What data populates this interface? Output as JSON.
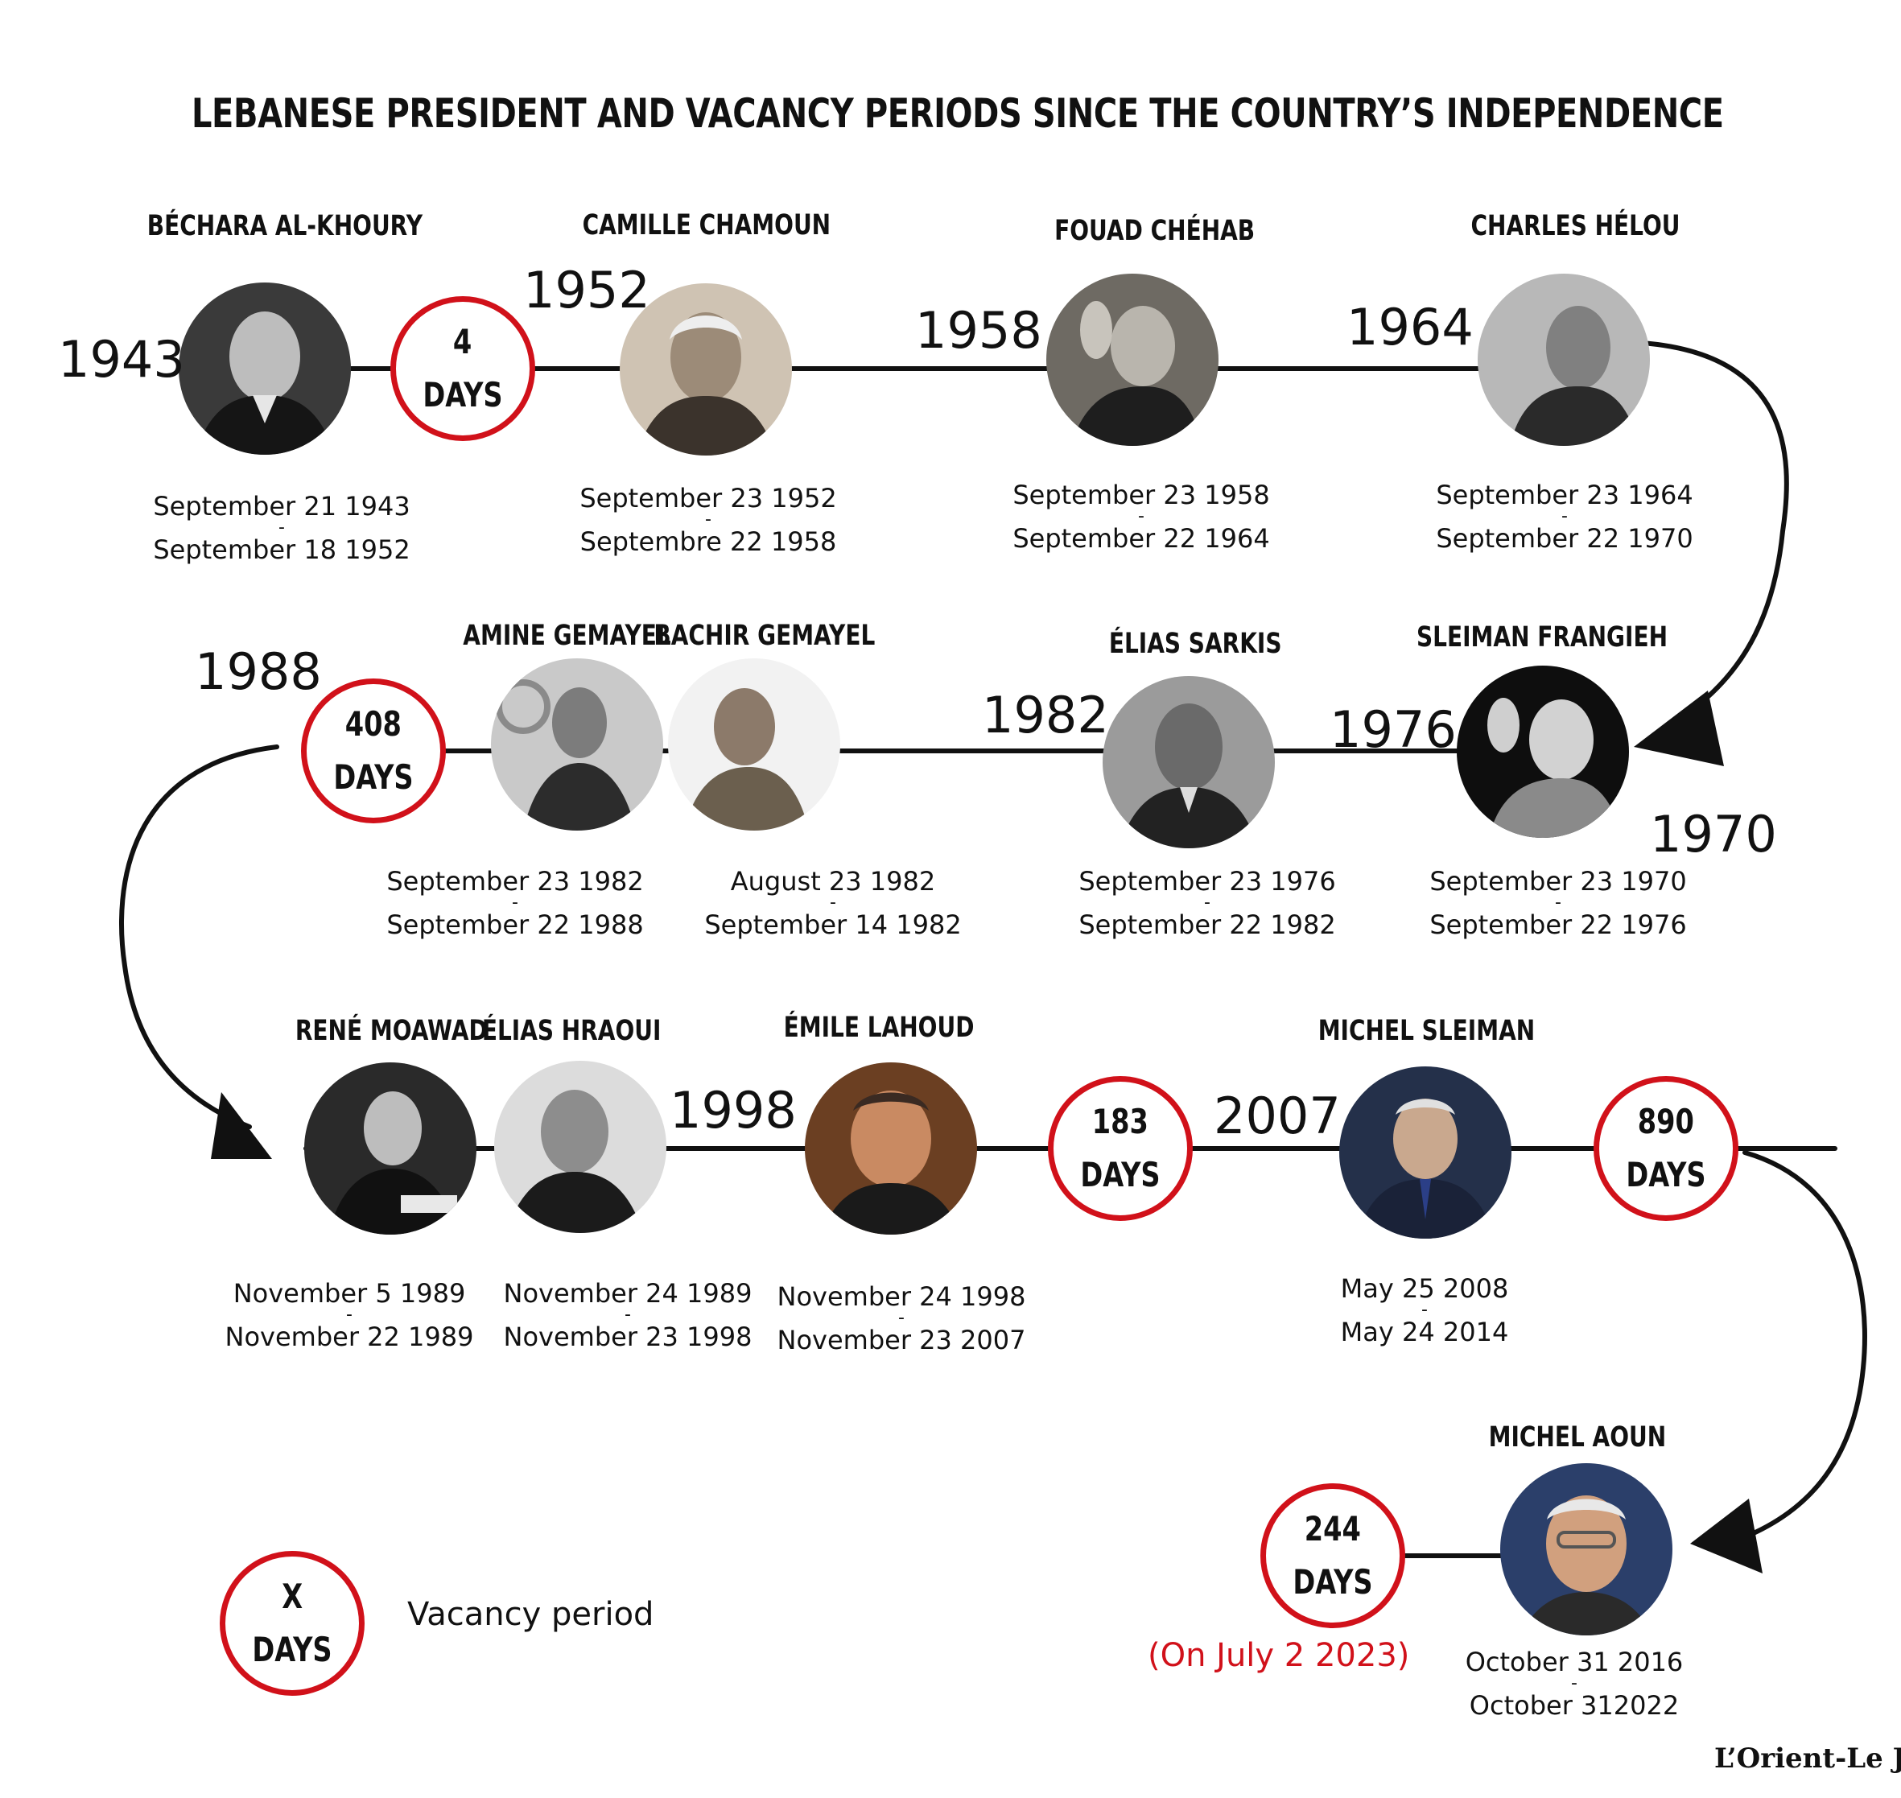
{
  "title": "LEBANESE PRESIDENT AND VACANCY PERIODS SINCE THE COUNTRY’S INDEPENDENCE",
  "presidents": [
    {
      "name": "BÉCHARA AL-KHOURY",
      "start": "September 21 1943",
      "end": "September 18 1952"
    },
    {
      "name": "CAMILLE CHAMOUN",
      "start": "September 23 1952",
      "end": "Septembre 22 1958"
    },
    {
      "name": "FOUAD CHÉHAB",
      "start": "September 23 1958",
      "end": "September 22 1964"
    },
    {
      "name": "CHARLES HÉLOU",
      "start": "September 23 1964",
      "end": "September 22 1970"
    },
    {
      "name": "SLEIMAN FRANGIEH",
      "start": "September 23 1970",
      "end": "September 22 1976"
    },
    {
      "name": "ÉLIAS SARKIS",
      "start": "September 23 1976",
      "end": "September 22 1982"
    },
    {
      "name": "BACHIR GEMAYEL",
      "start": "August 23 1982",
      "end": "September 14 1982"
    },
    {
      "name": "AMINE GEMAYEL",
      "start": "September 23 1982",
      "end": "September 22 1988"
    },
    {
      "name": "RENÉ MOAWAD",
      "start": "November 5 1989",
      "end": "November 22 1989"
    },
    {
      "name": "ÉLIAS HRAOUI",
      "start": "November 24 1989",
      "end": "November 23 1998"
    },
    {
      "name": "ÉMILE LAHOUD",
      "start": "November 24 1998",
      "end": "November 23 2007"
    },
    {
      "name": "MICHEL SLEIMAN",
      "start": "May 25 2008",
      "end": "May 24 2014"
    },
    {
      "name": "MICHEL AOUN",
      "start": "October 31 2016",
      "end": "October 312022"
    }
  ],
  "date_separator": "-",
  "vacancies": [
    {
      "days": "4",
      "unit": "DAYS"
    },
    {
      "days": "408",
      "unit": "DAYS"
    },
    {
      "days": "183",
      "unit": "DAYS"
    },
    {
      "days": "890",
      "unit": "DAYS"
    },
    {
      "days": "244",
      "unit": "DAYS"
    }
  ],
  "years": [
    "1943",
    "1952",
    "1958",
    "1964",
    "1970",
    "1976",
    "1982",
    "1988",
    "1998",
    "2007"
  ],
  "legend": {
    "symbol_top": "X",
    "symbol_bottom": "DAYS",
    "label": "Vacancy period"
  },
  "note": "(On July 2 2023)",
  "brand": "L’Orient-Le Jour",
  "colors": {
    "accent": "#d1111a",
    "line": "#111111"
  }
}
